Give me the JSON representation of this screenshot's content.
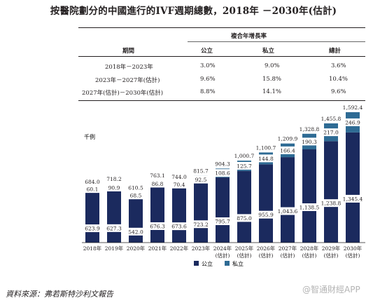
{
  "title": "按醫院劃分的中國進行的IVF週期總數，2018年 －2030年(估計)",
  "cagr_table": {
    "group_header": "複合年增長率",
    "columns": [
      "期間",
      "公立",
      "私立",
      "總計"
    ],
    "rows": [
      [
        "2018年－2023年",
        "3.0%",
        "9.0%",
        "3.6%"
      ],
      [
        "2023年－2027年(估計)",
        "9.6%",
        "15.8%",
        "10.4%"
      ],
      [
        "2027年(估計)－2030年(估計)",
        "8.8%",
        "14.1%",
        "9.6%"
      ]
    ]
  },
  "chart_data": {
    "type": "bar",
    "stacked": true,
    "ylabel": "千例",
    "categories": [
      "2018年",
      "2019年",
      "2020年",
      "2021年",
      "2022年",
      "2023年",
      "2024年\n(估計)",
      "2025年\n(估計)",
      "2026年\n(估計)",
      "2027年\n(估計)",
      "2028年\n(估計)",
      "2029年\n(估計)",
      "2030年\n(估計)"
    ],
    "series": [
      {
        "name": "公立",
        "color": "#1b2a5e",
        "values": [
          623.9,
          627.3,
          542.0,
          676.3,
          673.6,
          723.2,
          795.7,
          875.0,
          955.9,
          1043.6,
          1138.5,
          1238.8,
          1345.4
        ],
        "labels": [
          "623.9",
          "627.3",
          "542.0",
          "676.3",
          "673.6",
          "723.2",
          "795.7",
          "875.0",
          "955.9",
          "1,043.6",
          "1,138.5",
          "1,238.8",
          "1,345.4"
        ]
      },
      {
        "name": "私立",
        "color": "#2e6b94",
        "values": [
          60.1,
          90.9,
          68.5,
          86.8,
          70.4,
          92.5,
          108.6,
          125.7,
          144.8,
          166.4,
          190.3,
          217.0,
          246.9
        ],
        "labels": [
          "60.1",
          "90.9",
          "68.5",
          "86.8",
          "70.4",
          "92.5",
          "108.6",
          "125.7",
          "144.8",
          "166.4",
          "190.3",
          "217.0",
          "246.9"
        ]
      }
    ],
    "totals": [
      684.0,
      718.2,
      610.5,
      763.1,
      744.0,
      815.7,
      904.3,
      1000.7,
      1100.7,
      1209.9,
      1328.8,
      1455.8,
      1592.4
    ],
    "total_labels": [
      "684.0",
      "718.2",
      "610.5",
      "763.1",
      "744.0",
      "815.7",
      "904.3",
      "1,000.7",
      "1,100.7",
      "1,209.9",
      "1,328.8",
      "1,455.8",
      "1,592.4"
    ],
    "ylim": [
      0,
      1592.4
    ],
    "legend_position": "bottom-center",
    "grid": false
  },
  "footer": "資料來源：弗若斯特沙利文報告",
  "watermark": "@智通財經APP"
}
